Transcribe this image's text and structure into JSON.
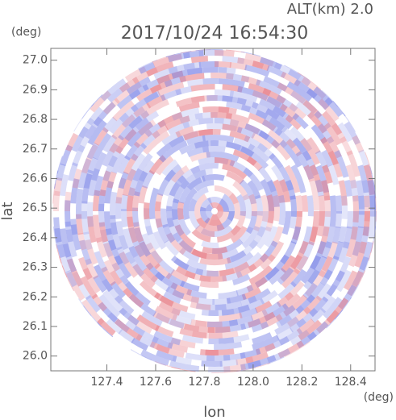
{
  "chart_data": {
    "type": "radar",
    "title": "2017/10/24 16:54:30",
    "subtitle": "ALT(km) 2.0",
    "xlabel": "lon",
    "ylabel": "lat",
    "xunit": "(deg)",
    "yunit": "(deg)",
    "xlim": [
      127.17,
      128.5
    ],
    "ylim": [
      25.95,
      27.04
    ],
    "xticks": [
      127.4,
      127.6,
      127.8,
      {
        "value": 128,
        "label": "128.0"
      },
      128.2,
      128.4
    ],
    "yticks": [
      {
        "value": 26,
        "label": "26.0"
      },
      26.1,
      26.2,
      26.3,
      26.4,
      26.5,
      26.6,
      26.7,
      26.8,
      26.9,
      {
        "value": 27,
        "label": "27.0"
      }
    ]
  }
}
